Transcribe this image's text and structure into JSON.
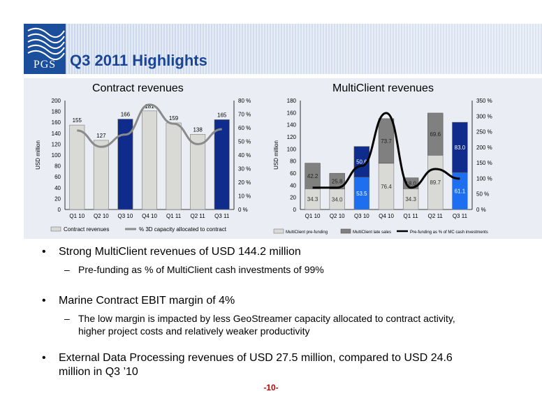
{
  "slide": {
    "logo_text": "PGS",
    "title": "Q3 2011 Highlights",
    "page_number": "-10-"
  },
  "bullets": [
    {
      "text": "Strong MultiClient revenues of USD 144.2 million",
      "subs": [
        "Pre-funding as % of MultiClient cash investments of 99%"
      ]
    },
    {
      "text": "Marine Contract EBIT margin of 4%",
      "subs": [
        "The low margin is impacted by less GeoStreamer capacity allocated to contract activity,",
        "higher project costs and relatively weaker productivity"
      ]
    },
    {
      "text": "External Data Processing revenues of USD 27.5 million, compared to USD 24.6",
      "text2": "million in Q3 ’10",
      "subs": []
    }
  ],
  "bullet_marker": "•",
  "sub_marker": "–",
  "chart_data": [
    {
      "type": "bar",
      "title": "Contract revenues",
      "categories": [
        "Q1 10",
        "Q2 10",
        "Q3 10",
        "Q4 10",
        "Q1 11",
        "Q2 11",
        "Q3 11"
      ],
      "series": [
        {
          "name": "Contract revenues",
          "values": [
            155,
            127,
            166,
            181,
            159,
            138,
            165
          ],
          "type": "bar"
        },
        {
          "name": "% 3D capacity allocated to contract",
          "values": [
            58,
            46,
            55,
            77,
            63,
            48,
            59
          ],
          "type": "line",
          "axis": "right"
        }
      ],
      "highlight_bars": [
        2,
        6
      ],
      "ylabel": "USD million",
      "ylim": [
        0,
        200
      ],
      "yticks": [
        "0",
        "20",
        "40",
        "60",
        "80",
        "100",
        "120",
        "140",
        "160",
        "180",
        "200"
      ],
      "y2lim": [
        0,
        80
      ],
      "y2ticks": [
        "0 %",
        "10 %",
        "20 %",
        "30 %",
        "40 %",
        "50 %",
        "60 %",
        "70 %",
        "80 %"
      ],
      "colors": {
        "bar": "#d9d9d6",
        "highlight": "#0f2c8c",
        "line": "#8a8a8a"
      }
    },
    {
      "type": "bar",
      "title": "MultiClient revenues",
      "categories": [
        "Q1 10",
        "Q2 10",
        "Q3 10",
        "Q4 10",
        "Q1 11",
        "Q2 11",
        "Q3 11"
      ],
      "series": [
        {
          "name": "MultiClient pre-funding",
          "values": [
            34.3,
            34.0,
            53.5,
            76.4,
            34.3,
            89.7,
            61.1
          ],
          "type": "bar",
          "stack": "a"
        },
        {
          "name": "MultiClient late sales",
          "values": [
            42.2,
            25.8,
            50.6,
            73.7,
            18.0,
            69.6,
            83.0
          ],
          "type": "bar",
          "stack": "a"
        },
        {
          "name": "Pre-funding as % of MC cash investments",
          "values": [
            70,
            70,
            140,
            310,
            70,
            130,
            99
          ],
          "type": "line",
          "axis": "right"
        }
      ],
      "label_pre": [
        "34.3",
        "34.0",
        "53.5",
        "76.4",
        "34.3",
        "89.7",
        "61.1"
      ],
      "label_late": [
        "42.2",
        "25.8",
        "50.6",
        "73.7",
        "18.0",
        "69.6",
        "83.0"
      ],
      "highlight_bars": [
        2,
        6
      ],
      "ylabel": "USD million",
      "ylim": [
        0,
        180
      ],
      "yticks": [
        "0",
        "20",
        "40",
        "60",
        "80",
        "100",
        "120",
        "140",
        "160",
        "180"
      ],
      "y2lim": [
        0,
        350
      ],
      "y2ticks": [
        "0 %",
        "50 %",
        "100 %",
        "150 %",
        "200 %",
        "250 %",
        "300 %",
        "350 %"
      ],
      "colors": {
        "pre": "#d9d9d6",
        "late": "#808080",
        "pre_hl": "#1e6ff0",
        "late_hl": "#0f2c8c",
        "line": "#000000"
      }
    }
  ]
}
